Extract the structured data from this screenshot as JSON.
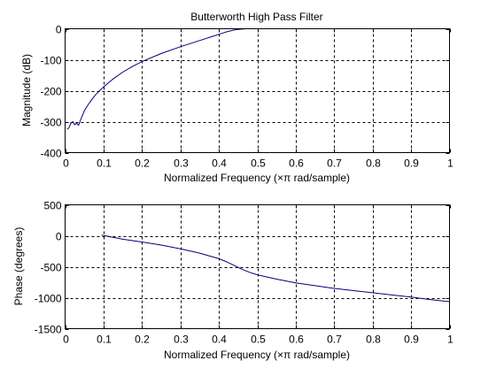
{
  "colors": {
    "line": "#00007f",
    "axes": "#000000",
    "background": "#ffffff"
  },
  "chart_data": [
    {
      "type": "line",
      "title": "Butterworth High Pass Filter",
      "xlabel": "Normalized Frequency  (×π rad/sample)",
      "ylabel": "Magnitude (dB)",
      "xlim": [
        0,
        1
      ],
      "ylim": [
        -400,
        0
      ],
      "grid": true,
      "xticks": [
        0,
        0.1,
        0.2,
        0.3,
        0.4,
        0.5,
        0.6,
        0.7,
        0.8,
        0.9,
        1
      ],
      "xtick_labels": [
        "0",
        "0.1",
        "0.2",
        "0.3",
        "0.4",
        "0.5",
        "0.6",
        "0.7",
        "0.8",
        "0.9",
        "1"
      ],
      "yticks": [
        -400,
        -300,
        -200,
        -100,
        0
      ],
      "ytick_labels": [
        "-400",
        "-300",
        "-200",
        "-100",
        "0"
      ],
      "series": [
        {
          "x": [
            0.005,
            0.01,
            0.015,
            0.02,
            0.025,
            0.03,
            0.035,
            0.04,
            0.05,
            0.06,
            0.07,
            0.08,
            0.09,
            0.1,
            0.125,
            0.15,
            0.175,
            0.2,
            0.25,
            0.3,
            0.35,
            0.38,
            0.4,
            0.42,
            0.44,
            0.45,
            0.46,
            0.47,
            0.5,
            0.6,
            0.7,
            0.8,
            0.9,
            1.0
          ],
          "y": [
            -325,
            -320,
            -305,
            -300,
            -310,
            -305,
            -312,
            -295,
            -265,
            -245,
            -228,
            -212,
            -200,
            -188,
            -162,
            -140,
            -122,
            -106,
            -80,
            -58,
            -38,
            -26,
            -18,
            -10,
            -4,
            -2,
            -1,
            0,
            0,
            0,
            0,
            0,
            0,
            0
          ]
        }
      ]
    },
    {
      "type": "line",
      "title": "",
      "xlabel": "Normalized Frequency  (×π rad/sample)",
      "ylabel": "Phase (degrees)",
      "xlim": [
        0,
        1
      ],
      "ylim": [
        -1500,
        500
      ],
      "grid": true,
      "xticks": [
        0,
        0.1,
        0.2,
        0.3,
        0.4,
        0.5,
        0.6,
        0.7,
        0.8,
        0.9,
        1
      ],
      "xtick_labels": [
        "0",
        "0.1",
        "0.2",
        "0.3",
        "0.4",
        "0.5",
        "0.6",
        "0.7",
        "0.8",
        "0.9",
        "1"
      ],
      "yticks": [
        -1500,
        -1000,
        -500,
        0,
        500
      ],
      "ytick_labels": [
        "-1500",
        "-1000",
        "-500",
        "0",
        "500"
      ],
      "series": [
        {
          "x": [
            0.095,
            0.1,
            0.12,
            0.15,
            0.2,
            0.25,
            0.3,
            0.35,
            0.4,
            0.42,
            0.44,
            0.46,
            0.48,
            0.5,
            0.55,
            0.6,
            0.65,
            0.7,
            0.75,
            0.8,
            0.85,
            0.9,
            0.95,
            1.0
          ],
          "y": [
            10,
            5,
            -20,
            -55,
            -100,
            -150,
            -210,
            -280,
            -370,
            -420,
            -480,
            -540,
            -590,
            -630,
            -700,
            -760,
            -805,
            -850,
            -885,
            -920,
            -955,
            -990,
            -1030,
            -1065
          ]
        }
      ]
    }
  ]
}
